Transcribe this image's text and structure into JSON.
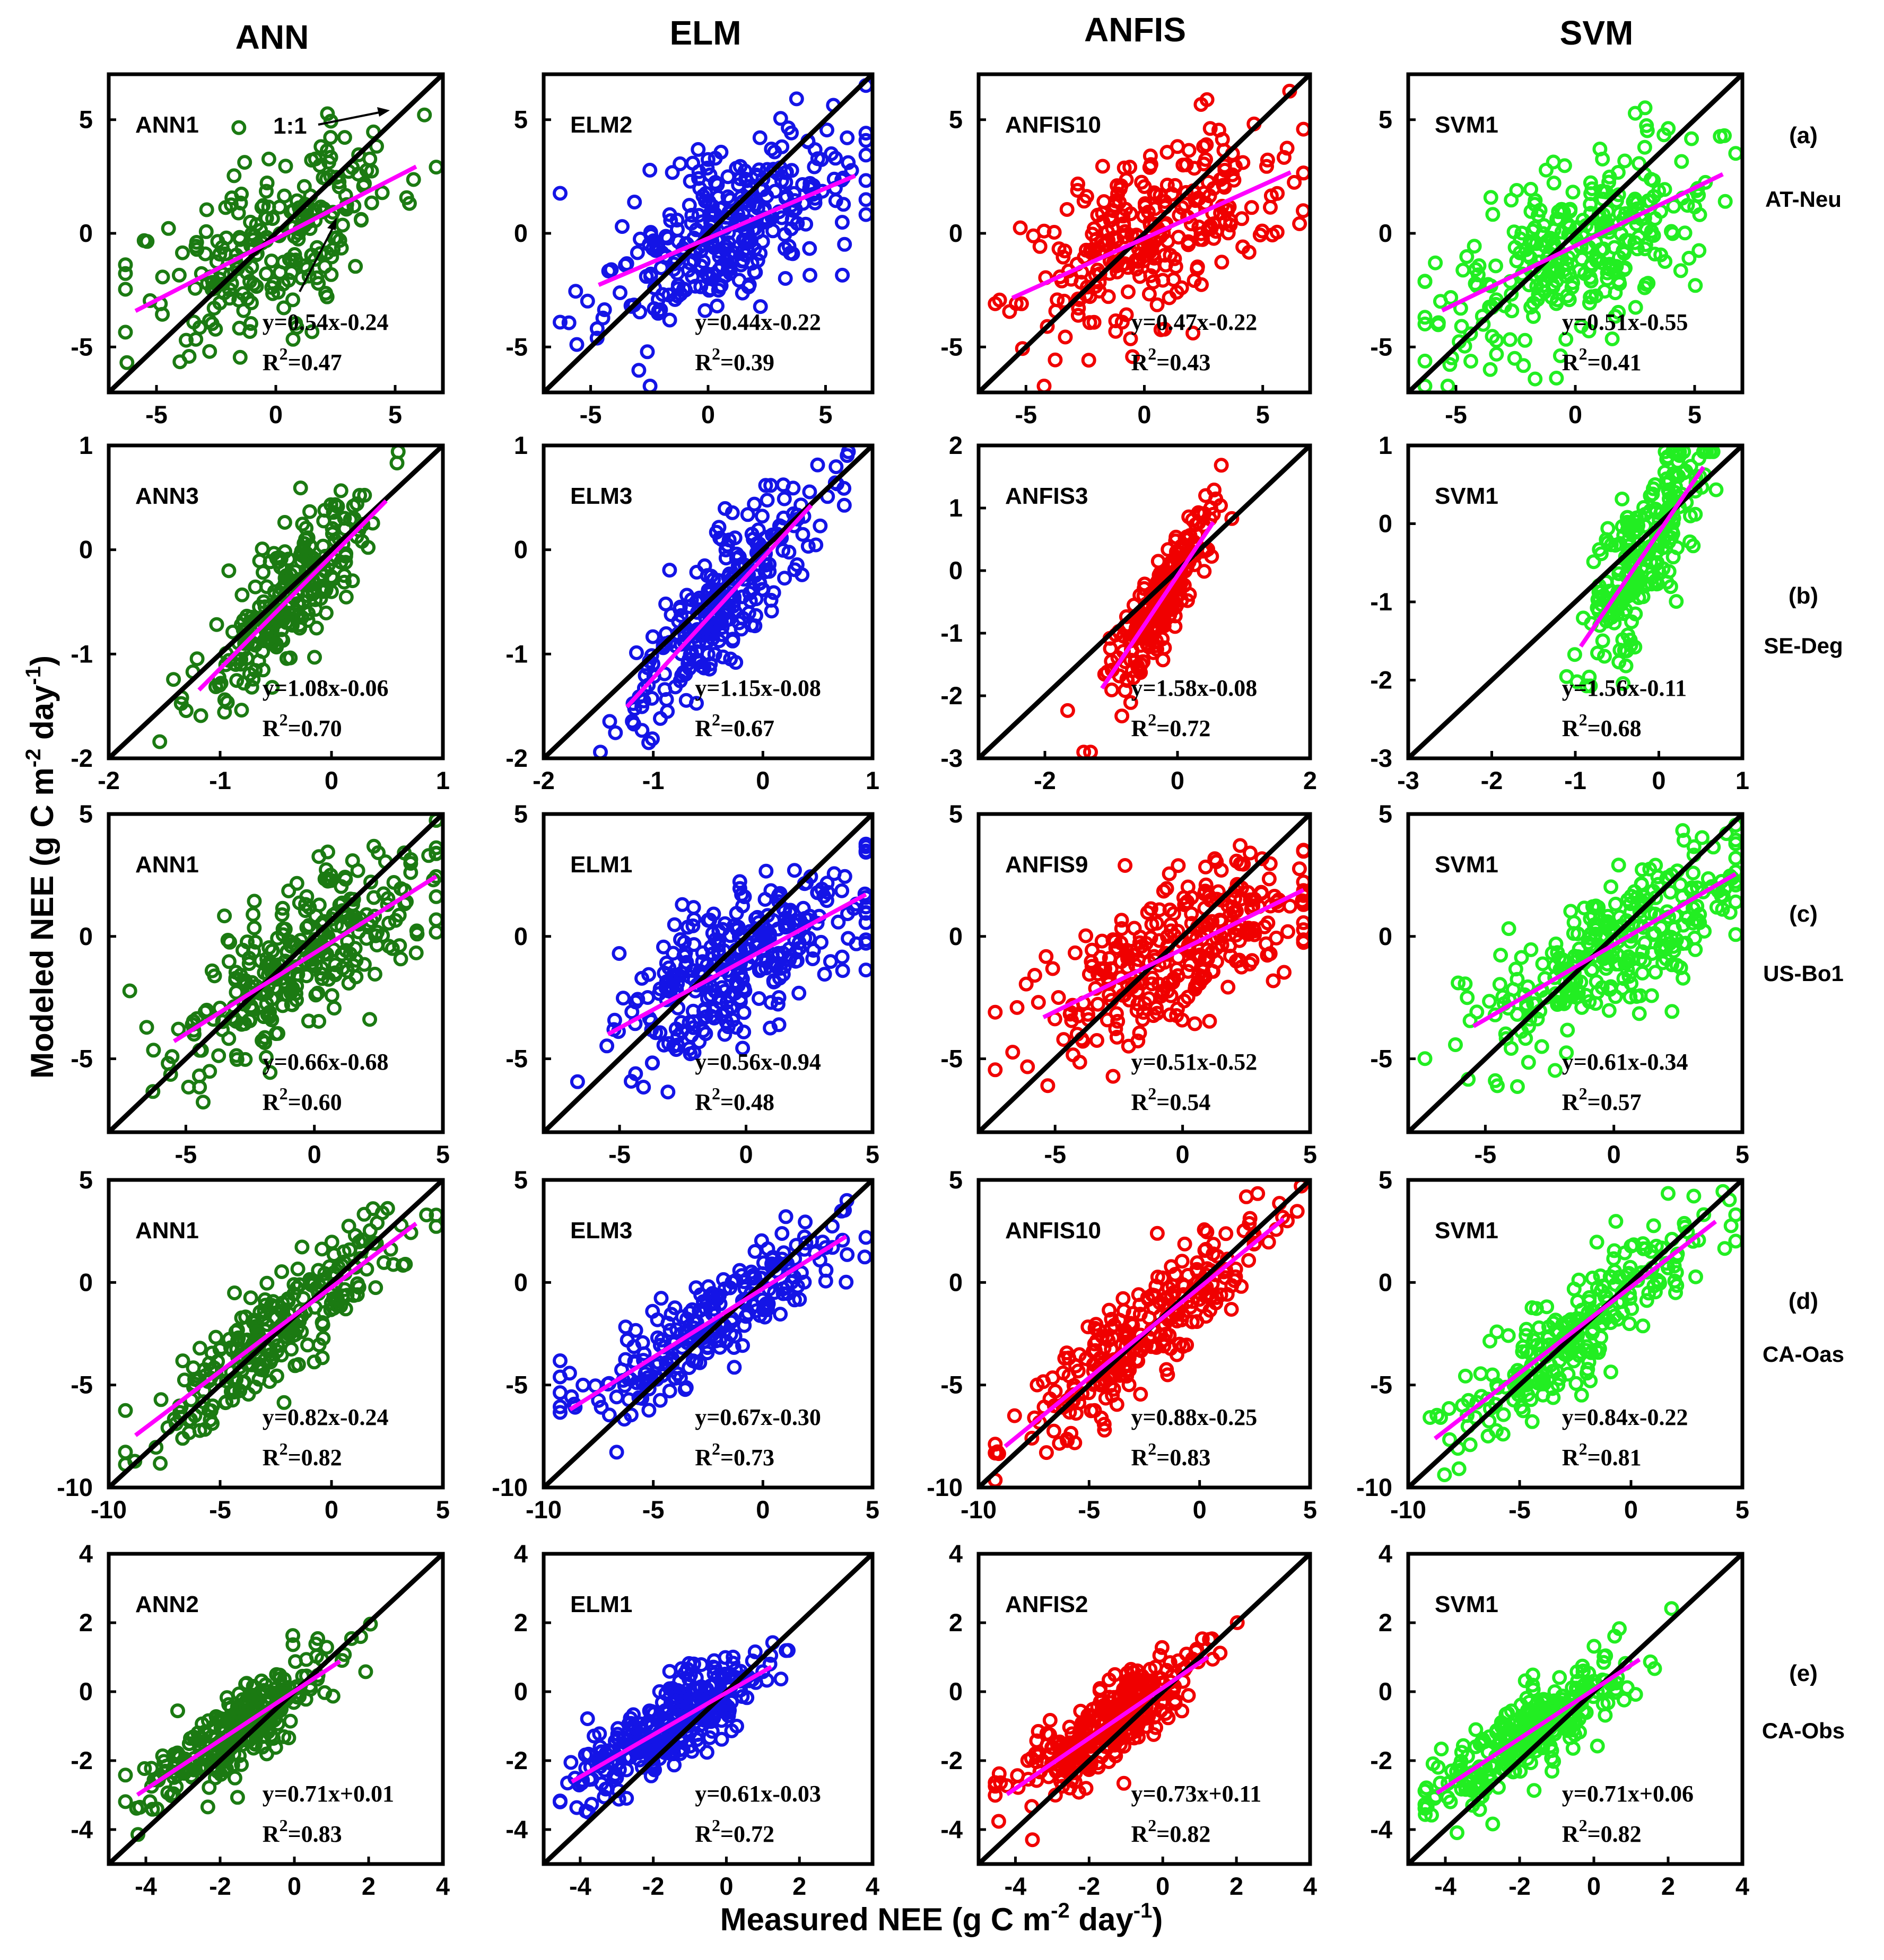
{
  "figure": {
    "column_titles": [
      "ANN",
      "ELM",
      "ANFIS",
      "SVM"
    ],
    "xlabel_main": "Measured NEE (g C m",
    "xlabel_exp": "-2",
    "xlabel_mid": " day",
    "xlabel_exp2": "-1",
    "xlabel_end": ")",
    "ylabel_main": "Modeled NEE (g C m",
    "ylabel_exp": "-2",
    "ylabel_mid": " day",
    "ylabel_exp2": "-1",
    "ylabel_end": ")",
    "one_to_one_label": "1:1",
    "colors": {
      "ANN": "#1b7a12",
      "ELM": "#1414e6",
      "ANFIS": "#f00000",
      "SVM": "#22ee22",
      "fit": "#ff00ff",
      "identity": "#000000"
    }
  },
  "chart_data": {
    "type": "scatter",
    "rows": [
      {
        "panel": "(a)",
        "site": "AT-Neu",
        "range": [
          -7,
          7
        ],
        "ticks": [
          -5,
          0,
          5
        ]
      },
      {
        "panel": "(b)",
        "site": "SE-Deg",
        "range": null,
        "ticks": null
      },
      {
        "panel": "(c)",
        "site": "US-Bo1",
        "range": [
          -8,
          5
        ],
        "ticks": [
          -5,
          0,
          5
        ]
      },
      {
        "panel": "(d)",
        "site": "CA-Oas",
        "range": [
          -10,
          5
        ],
        "ticks": [
          -10,
          -5,
          0,
          5
        ]
      },
      {
        "panel": "(e)",
        "site": "CA-Obs",
        "range": [
          -5,
          4
        ],
        "ticks": [
          -4,
          -2,
          0,
          2,
          4
        ]
      }
    ],
    "panels": [
      {
        "row": 0,
        "col": 0,
        "model": "ANN1",
        "slope": 0.54,
        "intercept": -0.24,
        "eq": "y=0.54x-0.24",
        "r2": "0.47",
        "x": [
          -7,
          7
        ],
        "y": [
          -7,
          7
        ],
        "xticks": [
          -5,
          0,
          5
        ],
        "yticks": [
          -5,
          0,
          5
        ],
        "cx": 0,
        "sx": 2.8,
        "sy": 1.9,
        "n": 230
      },
      {
        "row": 0,
        "col": 1,
        "model": "ELM2",
        "slope": 0.44,
        "intercept": -0.22,
        "eq": "y=0.44x-0.22",
        "r2": "0.39",
        "x": [
          -7,
          7
        ],
        "y": [
          -7,
          7
        ],
        "xticks": [
          -5,
          0,
          5
        ],
        "yticks": [
          -5,
          0,
          5
        ],
        "cx": 0.8,
        "sx": 2.6,
        "sy": 1.8,
        "n": 320
      },
      {
        "row": 0,
        "col": 2,
        "model": "ANFIS10",
        "slope": 0.47,
        "intercept": -0.22,
        "eq": "y=0.47x-0.22",
        "r2": "0.43",
        "x": [
          -7,
          7
        ],
        "y": [
          -7,
          7
        ],
        "xticks": [
          -5,
          0,
          5
        ],
        "yticks": [
          -5,
          0,
          5
        ],
        "cx": 0.3,
        "sx": 2.8,
        "sy": 1.9,
        "n": 280
      },
      {
        "row": 0,
        "col": 3,
        "model": "SVM1",
        "slope": 0.51,
        "intercept": -0.55,
        "eq": "y=0.51x-0.55",
        "r2": "0.41",
        "x": [
          -7,
          7
        ],
        "y": [
          -7,
          7
        ],
        "xticks": [
          -5,
          0,
          5
        ],
        "yticks": [
          -5,
          0,
          5
        ],
        "cx": 0.3,
        "sx": 2.8,
        "sy": 1.9,
        "n": 300
      },
      {
        "row": 1,
        "col": 0,
        "model": "ANN3",
        "slope": 1.08,
        "intercept": -0.06,
        "eq": "y=1.08x-0.06",
        "r2": "0.70",
        "x": [
          -2,
          1
        ],
        "y": [
          -2,
          1
        ],
        "xticks": [
          -2,
          -1,
          0,
          1
        ],
        "yticks": [
          -2,
          -1,
          0,
          1
        ],
        "cx": -0.35,
        "sx": 0.4,
        "sy": 0.28,
        "n": 260
      },
      {
        "row": 1,
        "col": 1,
        "model": "ELM3",
        "slope": 1.15,
        "intercept": -0.08,
        "eq": "y=1.15x-0.08",
        "r2": "0.67",
        "x": [
          -2,
          1
        ],
        "y": [
          -2,
          1
        ],
        "xticks": [
          -2,
          -1,
          0,
          1
        ],
        "yticks": [
          -2,
          -1,
          0,
          1
        ],
        "cx": -0.4,
        "sx": 0.4,
        "sy": 0.3,
        "n": 260
      },
      {
        "row": 1,
        "col": 2,
        "model": "ANFIS3",
        "slope": 1.58,
        "intercept": -0.08,
        "eq": "y=1.58x-0.08",
        "r2": "0.72",
        "x": [
          -3,
          2
        ],
        "y": [
          -3,
          2
        ],
        "xticks": [
          -2,
          0,
          2
        ],
        "yticks": [
          -3,
          -2,
          -1,
          0,
          1,
          2
        ],
        "cx": -0.3,
        "sx": 0.4,
        "sy": 0.35,
        "n": 260
      },
      {
        "row": 1,
        "col": 3,
        "model": "SVM1",
        "slope": 1.56,
        "intercept": -0.11,
        "eq": "y=1.56x-0.11",
        "r2": "0.68",
        "x": [
          -3,
          1
        ],
        "y": [
          -3,
          1
        ],
        "xticks": [
          -3,
          -2,
          -1,
          0,
          1
        ],
        "yticks": [
          -3,
          -2,
          -1,
          0,
          1
        ],
        "cx": -0.2,
        "sx": 0.35,
        "sy": 0.45,
        "n": 240
      },
      {
        "row": 2,
        "col": 0,
        "model": "ANN1",
        "slope": 0.66,
        "intercept": -0.68,
        "eq": "y=0.66x-0.68",
        "r2": "0.60",
        "x": [
          -8,
          5
        ],
        "y": [
          -8,
          5
        ],
        "xticks": [
          -5,
          0,
          5
        ],
        "yticks": [
          -5,
          0,
          5
        ],
        "cx": 0,
        "sx": 2.6,
        "sy": 1.5,
        "n": 300
      },
      {
        "row": 2,
        "col": 1,
        "model": "ELM1",
        "slope": 0.56,
        "intercept": -0.94,
        "eq": "y=0.56x-0.94",
        "r2": "0.48",
        "x": [
          -8,
          5
        ],
        "y": [
          -8,
          5
        ],
        "xticks": [
          -5,
          0,
          5
        ],
        "yticks": [
          -5,
          0,
          5
        ],
        "cx": 0,
        "sx": 2.6,
        "sy": 1.5,
        "n": 320
      },
      {
        "row": 2,
        "col": 2,
        "model": "ANFIS9",
        "slope": 0.51,
        "intercept": -0.52,
        "eq": "y=0.51x-0.52",
        "r2": "0.54",
        "x": [
          -8,
          5
        ],
        "y": [
          -8,
          5
        ],
        "xticks": [
          -5,
          0,
          5
        ],
        "yticks": [
          -5,
          0,
          5
        ],
        "cx": 0,
        "sx": 2.6,
        "sy": 1.4,
        "n": 300
      },
      {
        "row": 2,
        "col": 3,
        "model": "SVM1",
        "slope": 0.61,
        "intercept": -0.34,
        "eq": "y=0.61x-0.34",
        "r2": "0.57",
        "x": [
          -8,
          5
        ],
        "y": [
          -8,
          5
        ],
        "xticks": [
          -5,
          0,
          5
        ],
        "yticks": [
          -5,
          0,
          5
        ],
        "cx": 0,
        "sx": 2.6,
        "sy": 1.5,
        "n": 300
      },
      {
        "row": 3,
        "col": 0,
        "model": "ANN1",
        "slope": 0.82,
        "intercept": -0.24,
        "eq": "y=0.82x-0.24",
        "r2": "0.82",
        "x": [
          -10,
          5
        ],
        "y": [
          -10,
          5
        ],
        "xticks": [
          -10,
          -5,
          0,
          5
        ],
        "yticks": [
          -10,
          -5,
          0,
          5
        ],
        "cx": -2.5,
        "sx": 3.0,
        "sy": 1.2,
        "n": 260
      },
      {
        "row": 3,
        "col": 1,
        "model": "ELM3",
        "slope": 0.67,
        "intercept": -0.3,
        "eq": "y=0.67x-0.30",
        "r2": "0.73",
        "x": [
          -10,
          5
        ],
        "y": [
          -10,
          5
        ],
        "xticks": [
          -10,
          -5,
          0,
          5
        ],
        "yticks": [
          -10,
          -5,
          0,
          5
        ],
        "cx": -2.5,
        "sx": 3.0,
        "sy": 1.2,
        "n": 240
      },
      {
        "row": 3,
        "col": 2,
        "model": "ANFIS10",
        "slope": 0.88,
        "intercept": -0.25,
        "eq": "y=0.88x-0.25",
        "r2": "0.83",
        "x": [
          -10,
          5
        ],
        "y": [
          -10,
          5
        ],
        "xticks": [
          -10,
          -5,
          0,
          5
        ],
        "yticks": [
          -10,
          -5,
          0,
          5
        ],
        "cx": -2.5,
        "sx": 3.0,
        "sy": 1.2,
        "n": 260
      },
      {
        "row": 3,
        "col": 3,
        "model": "SVM1",
        "slope": 0.84,
        "intercept": -0.22,
        "eq": "y=0.84x-0.22",
        "r2": "0.81",
        "x": [
          -10,
          5
        ],
        "y": [
          -10,
          5
        ],
        "xticks": [
          -10,
          -5,
          0,
          5
        ],
        "yticks": [
          -10,
          -5,
          0,
          5
        ],
        "cx": -2.5,
        "sx": 3.0,
        "sy": 1.2,
        "n": 260
      },
      {
        "row": 4,
        "col": 0,
        "model": "ANN2",
        "slope": 0.71,
        "intercept": 0.01,
        "eq": "y=0.71x+0.01",
        "r2": "0.83",
        "x": [
          -5,
          4
        ],
        "y": [
          -5,
          4
        ],
        "xticks": [
          -4,
          -2,
          0,
          2,
          4
        ],
        "yticks": [
          -4,
          -2,
          0,
          2,
          4
        ],
        "cx": -1.5,
        "sx": 1.3,
        "sy": 0.55,
        "n": 300
      },
      {
        "row": 4,
        "col": 1,
        "model": "ELM1",
        "slope": 0.61,
        "intercept": -0.03,
        "eq": "y=0.61x-0.03",
        "r2": "0.72",
        "x": [
          -5,
          4
        ],
        "y": [
          -5,
          4
        ],
        "xticks": [
          -4,
          -2,
          0,
          2,
          4
        ],
        "yticks": [
          -4,
          -2,
          0,
          2,
          4
        ],
        "cx": -1.5,
        "sx": 1.3,
        "sy": 0.6,
        "n": 320
      },
      {
        "row": 4,
        "col": 2,
        "model": "ANFIS2",
        "slope": 0.73,
        "intercept": 0.11,
        "eq": "y=0.73x+0.11",
        "r2": "0.82",
        "x": [
          -5,
          4
        ],
        "y": [
          -5,
          4
        ],
        "xticks": [
          -4,
          -2,
          0,
          2,
          4
        ],
        "yticks": [
          -4,
          -2,
          0,
          2,
          4
        ],
        "cx": -1.5,
        "sx": 1.3,
        "sy": 0.55,
        "n": 320
      },
      {
        "row": 4,
        "col": 3,
        "model": "SVM1",
        "slope": 0.71,
        "intercept": 0.06,
        "eq": "y=0.71x+0.06",
        "r2": "0.82",
        "x": [
          -5,
          4
        ],
        "y": [
          -5,
          4
        ],
        "xticks": [
          -4,
          -2,
          0,
          2,
          4
        ],
        "yticks": [
          -4,
          -2,
          0,
          2,
          4
        ],
        "cx": -1.5,
        "sx": 1.3,
        "sy": 0.55,
        "n": 300
      }
    ]
  }
}
